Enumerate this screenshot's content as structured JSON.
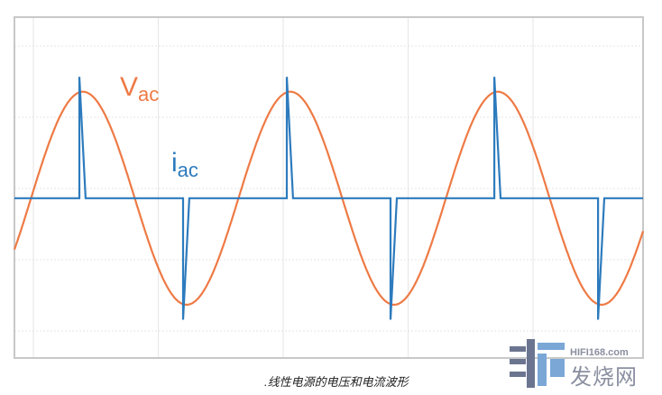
{
  "chart_data": {
    "type": "line",
    "title": "",
    "xlabel": "",
    "ylabel": "",
    "grid": true,
    "x_unit": "cycles",
    "xlim": [
      -0.08,
      2.95
    ],
    "ylim": [
      -1.5,
      1.7
    ],
    "series": [
      {
        "name": "Vac",
        "label_main": "V",
        "label_sub": "ac",
        "color": "#ee7a45",
        "shape": "sine",
        "amplitude": 1.0,
        "cycles": 3
      },
      {
        "name": "iac",
        "label_main": "i",
        "label_sub": "ac",
        "color": "#2d7bbd",
        "shape": "pulse",
        "peak": 1.14,
        "pulse_start_phase": 0.233,
        "pulse_end_phase": 0.263,
        "pulses": [
          {
            "cycle": 0,
            "sign": 1
          },
          {
            "cycle": 0,
            "sign": -1
          },
          {
            "cycle": 1,
            "sign": 1
          },
          {
            "cycle": 1,
            "sign": -1
          },
          {
            "cycle": 2,
            "sign": 1
          },
          {
            "cycle": 2,
            "sign": -1
          }
        ]
      }
    ]
  },
  "caption": ".线性电源的电压和电流波形",
  "watermark": {
    "url": "HIFI168.com",
    "name": "发烧网"
  }
}
